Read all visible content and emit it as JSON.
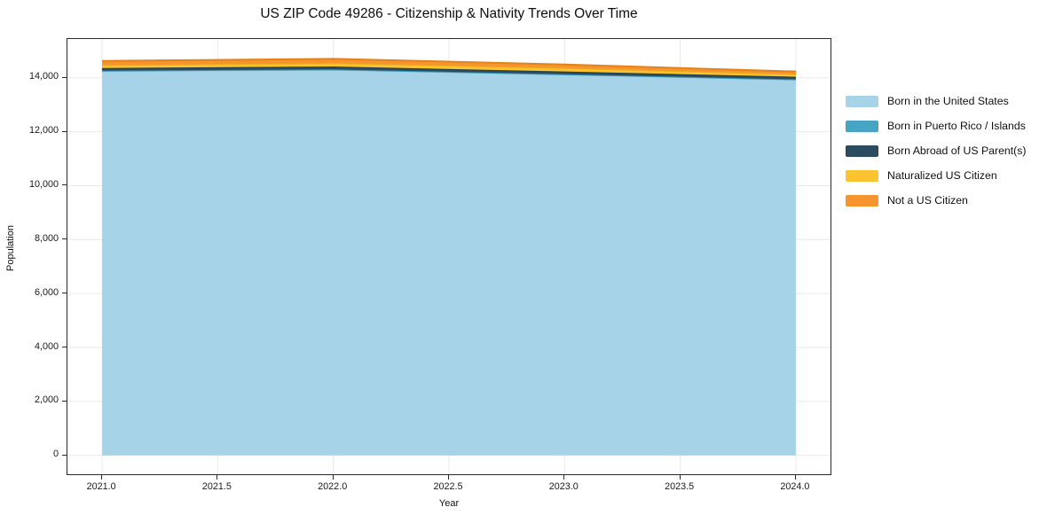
{
  "chart_data": {
    "type": "area",
    "stacked": true,
    "title": "US ZIP Code 49286 - Citizenship & Nativity Trends Over Time",
    "xlabel": "Year",
    "ylabel": "Population",
    "x": [
      2021,
      2022,
      2023,
      2024
    ],
    "series": [
      {
        "name": "Born in the United States",
        "color": "#a7d3e8",
        "line_color": "#8fc4dd",
        "values": [
          14250,
          14300,
          14120,
          13930
        ]
      },
      {
        "name": "Born in Puerto Rico / Islands",
        "color": "#46a5c2",
        "line_color": "#3595b3",
        "values": [
          15,
          15,
          15,
          15
        ]
      },
      {
        "name": "Born Abroad of US Parent(s)",
        "color": "#2b4c5e",
        "line_color": "#24404f",
        "values": [
          100,
          105,
          100,
          95
        ]
      },
      {
        "name": "Naturalized US Citizen",
        "color": "#fcc331",
        "line_color": "#eab01b",
        "values": [
          105,
          125,
          130,
          95
        ]
      },
      {
        "name": "Not a US Citizen",
        "color": "#f6952e",
        "line_color": "#e58118",
        "values": [
          155,
          160,
          130,
          100
        ]
      }
    ],
    "xlim": [
      2020.85,
      2024.15
    ],
    "ylim": [
      -700,
      15440
    ],
    "x_ticks": [
      2021.0,
      2021.5,
      2022.0,
      2022.5,
      2023.0,
      2023.5,
      2024.0
    ],
    "x_tick_labels": [
      "2021.0",
      "2021.5",
      "2022.0",
      "2022.5",
      "2023.0",
      "2023.5",
      "2024.0"
    ],
    "y_ticks": [
      0,
      2000,
      4000,
      6000,
      8000,
      10000,
      12000,
      14000
    ],
    "y_tick_labels": [
      "0",
      "2,000",
      "4,000",
      "6,000",
      "8,000",
      "10,000",
      "12,000",
      "14,000"
    ],
    "grid": true,
    "legend_position": "right",
    "axis_color": "#2a2a2a",
    "grid_color": "#e9e9e9",
    "tick_label_color": "#1a1a1a"
  }
}
